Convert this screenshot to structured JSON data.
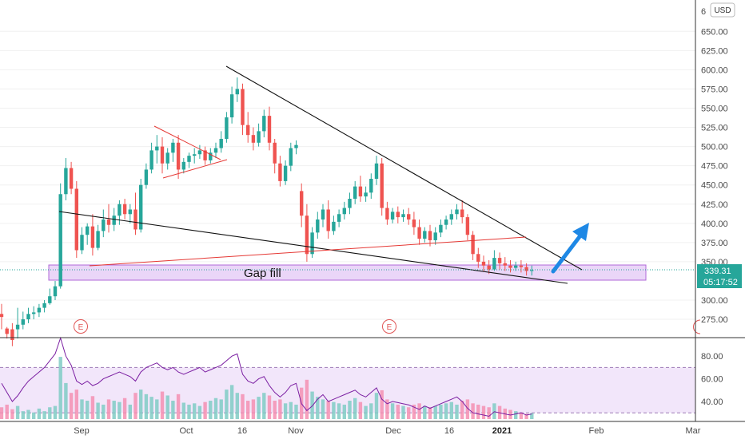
{
  "chart_data": {
    "type": "candlestick",
    "currency": "USD",
    "price_ticks": [
      "650.00",
      "625.00",
      "600.00",
      "575.00",
      "550.00",
      "525.00",
      "500.00",
      "475.00",
      "450.00",
      "425.00",
      "400.00",
      "375.00",
      "350.00",
      "300.00",
      "275.00"
    ],
    "price_top_partial": "6",
    "last_price": "339.31",
    "countdown": "05:17:52",
    "rsi_ticks": [
      "80.00",
      "60.00",
      "40.00"
    ],
    "date_labels": [
      {
        "text": "Sep",
        "bold": false
      },
      {
        "text": "Oct",
        "bold": false
      },
      {
        "text": "16",
        "bold": false
      },
      {
        "text": "Nov",
        "bold": false
      },
      {
        "text": "Dec",
        "bold": false
      },
      {
        "text": "16",
        "bold": false
      },
      {
        "text": "2021",
        "bold": true
      },
      {
        "text": "Feb",
        "bold": false
      },
      {
        "text": "Mar",
        "bold": false
      }
    ],
    "annotation": "Gap fill",
    "earnings_marker": "E",
    "colors": {
      "up": "#26a69a",
      "down": "#ef5350",
      "trend": "#111111",
      "support": "#e53935",
      "zone": "#d8b4f0",
      "arrow": "#1e88e5",
      "rsi": "#7b1fa2"
    },
    "candles": [
      [
        282,
        295,
        278,
        262
      ],
      [
        263,
        265,
        256,
        250
      ],
      [
        262,
        270,
        248,
        240
      ],
      [
        262,
        290,
        268,
        250
      ],
      [
        268,
        285,
        275,
        262
      ],
      [
        275,
        290,
        282,
        270
      ],
      [
        282,
        292,
        284,
        275
      ],
      [
        284,
        295,
        290,
        278
      ],
      [
        290,
        300,
        296,
        284
      ],
      [
        296,
        315,
        305,
        294
      ],
      [
        305,
        325,
        318,
        300
      ],
      [
        318,
        452,
        438,
        315
      ],
      [
        438,
        485,
        472,
        430
      ],
      [
        472,
        480,
        445,
        438
      ],
      [
        445,
        455,
        365,
        355
      ],
      [
        365,
        395,
        385,
        360
      ],
      [
        385,
        400,
        396,
        372
      ],
      [
        396,
        412,
        368,
        358
      ],
      [
        368,
        398,
        390,
        365
      ],
      [
        390,
        418,
        405,
        382
      ],
      [
        405,
        425,
        398,
        388
      ],
      [
        398,
        420,
        410,
        390
      ],
      [
        410,
        430,
        425,
        398
      ],
      [
        425,
        432,
        412,
        405
      ],
      [
        412,
        425,
        418,
        400
      ],
      [
        418,
        440,
        392,
        385
      ],
      [
        392,
        458,
        450,
        388
      ],
      [
        450,
        478,
        470,
        445
      ],
      [
        470,
        505,
        495,
        465
      ],
      [
        495,
        515,
        500,
        478
      ],
      [
        500,
        512,
        478,
        465
      ],
      [
        478,
        498,
        492,
        470
      ],
      [
        492,
        510,
        505,
        480
      ],
      [
        505,
        515,
        470,
        458
      ],
      [
        470,
        485,
        480,
        465
      ],
      [
        480,
        492,
        488,
        472
      ],
      [
        488,
        498,
        490,
        478
      ],
      [
        490,
        502,
        495,
        484
      ],
      [
        495,
        500,
        482,
        476
      ],
      [
        482,
        498,
        492,
        478
      ],
      [
        492,
        505,
        498,
        485
      ],
      [
        498,
        520,
        510,
        492
      ],
      [
        510,
        545,
        538,
        505
      ],
      [
        538,
        578,
        568,
        530
      ],
      [
        568,
        590,
        575,
        558
      ],
      [
        575,
        582,
        528,
        515
      ],
      [
        528,
        545,
        515,
        505
      ],
      [
        515,
        525,
        505,
        495
      ],
      [
        505,
        530,
        520,
        500
      ],
      [
        520,
        548,
        540,
        512
      ],
      [
        540,
        552,
        505,
        495
      ],
      [
        505,
        510,
        478,
        465
      ],
      [
        478,
        488,
        455,
        448
      ],
      [
        455,
        482,
        475,
        450
      ],
      [
        475,
        505,
        498,
        468
      ],
      [
        498,
        508,
        502,
        490
      ],
      [
        442,
        452,
        410,
        395
      ],
      [
        410,
        425,
        360,
        350
      ],
      [
        360,
        395,
        388,
        355
      ],
      [
        388,
        415,
        405,
        380
      ],
      [
        405,
        425,
        418,
        395
      ],
      [
        418,
        430,
        390,
        380
      ],
      [
        390,
        410,
        402,
        385
      ],
      [
        402,
        418,
        412,
        395
      ],
      [
        412,
        428,
        420,
        405
      ],
      [
        420,
        440,
        432,
        412
      ],
      [
        432,
        455,
        448,
        425
      ],
      [
        448,
        462,
        435,
        428
      ],
      [
        435,
        448,
        440,
        428
      ],
      [
        440,
        465,
        458,
        432
      ],
      [
        458,
        488,
        478,
        450
      ],
      [
        478,
        485,
        420,
        410
      ],
      [
        420,
        428,
        405,
        398
      ],
      [
        405,
        420,
        415,
        400
      ],
      [
        415,
        422,
        408,
        400
      ],
      [
        408,
        418,
        412,
        402
      ],
      [
        412,
        420,
        405,
        398
      ],
      [
        405,
        415,
        395,
        385
      ],
      [
        395,
        405,
        380,
        372
      ],
      [
        380,
        395,
        390,
        375
      ],
      [
        390,
        398,
        378,
        370
      ],
      [
        378,
        395,
        388,
        372
      ],
      [
        388,
        405,
        398,
        382
      ],
      [
        398,
        410,
        405,
        392
      ],
      [
        405,
        418,
        412,
        398
      ],
      [
        412,
        425,
        418,
        405
      ],
      [
        418,
        430,
        408,
        400
      ],
      [
        408,
        412,
        385,
        378
      ],
      [
        385,
        390,
        360,
        352
      ],
      [
        360,
        368,
        350,
        342
      ],
      [
        350,
        358,
        345,
        338
      ],
      [
        345,
        352,
        340,
        334
      ],
      [
        340,
        365,
        355,
        338
      ],
      [
        355,
        362,
        348,
        340
      ],
      [
        348,
        356,
        345,
        338
      ],
      [
        345,
        352,
        342,
        336
      ],
      [
        342,
        350,
        345,
        338
      ],
      [
        345,
        352,
        343,
        336
      ],
      [
        343,
        348,
        338,
        332
      ],
      [
        338,
        345,
        339,
        332
      ]
    ],
    "volume": [
      18,
      22,
      15,
      20,
      12,
      14,
      10,
      16,
      12,
      18,
      20,
      95,
      55,
      40,
      45,
      30,
      28,
      35,
      25,
      22,
      30,
      28,
      26,
      32,
      22,
      40,
      45,
      38,
      34,
      30,
      42,
      36,
      28,
      38,
      25,
      22,
      24,
      20,
      26,
      28,
      32,
      30,
      45,
      52,
      40,
      38,
      28,
      30,
      34,
      40,
      36,
      28,
      30,
      24,
      26,
      22,
      48,
      60,
      42,
      34,
      30,
      28,
      26,
      24,
      22,
      28,
      32,
      26,
      20,
      24,
      40,
      44,
      30,
      24,
      22,
      20,
      18,
      22,
      24,
      20,
      18,
      20,
      22,
      24,
      26,
      22,
      28,
      30,
      24,
      22,
      20,
      18,
      24,
      20,
      16,
      14,
      12,
      10,
      8,
      9
    ],
    "rsi": [
      56,
      48,
      40,
      45,
      52,
      58,
      62,
      66,
      70,
      76,
      82,
      96,
      80,
      72,
      58,
      55,
      58,
      54,
      56,
      60,
      62,
      64,
      66,
      64,
      62,
      58,
      66,
      70,
      72,
      74,
      70,
      68,
      70,
      66,
      64,
      66,
      68,
      70,
      66,
      68,
      70,
      72,
      76,
      80,
      82,
      64,
      58,
      56,
      60,
      62,
      54,
      48,
      44,
      48,
      54,
      56,
      38,
      32,
      36,
      42,
      46,
      40,
      42,
      44,
      46,
      48,
      50,
      46,
      44,
      48,
      52,
      42,
      38,
      40,
      39,
      38,
      37,
      35,
      33,
      36,
      34,
      36,
      38,
      40,
      42,
      44,
      40,
      34,
      30,
      29,
      28,
      27,
      31,
      30,
      29,
      28,
      29,
      30,
      28,
      29
    ]
  }
}
